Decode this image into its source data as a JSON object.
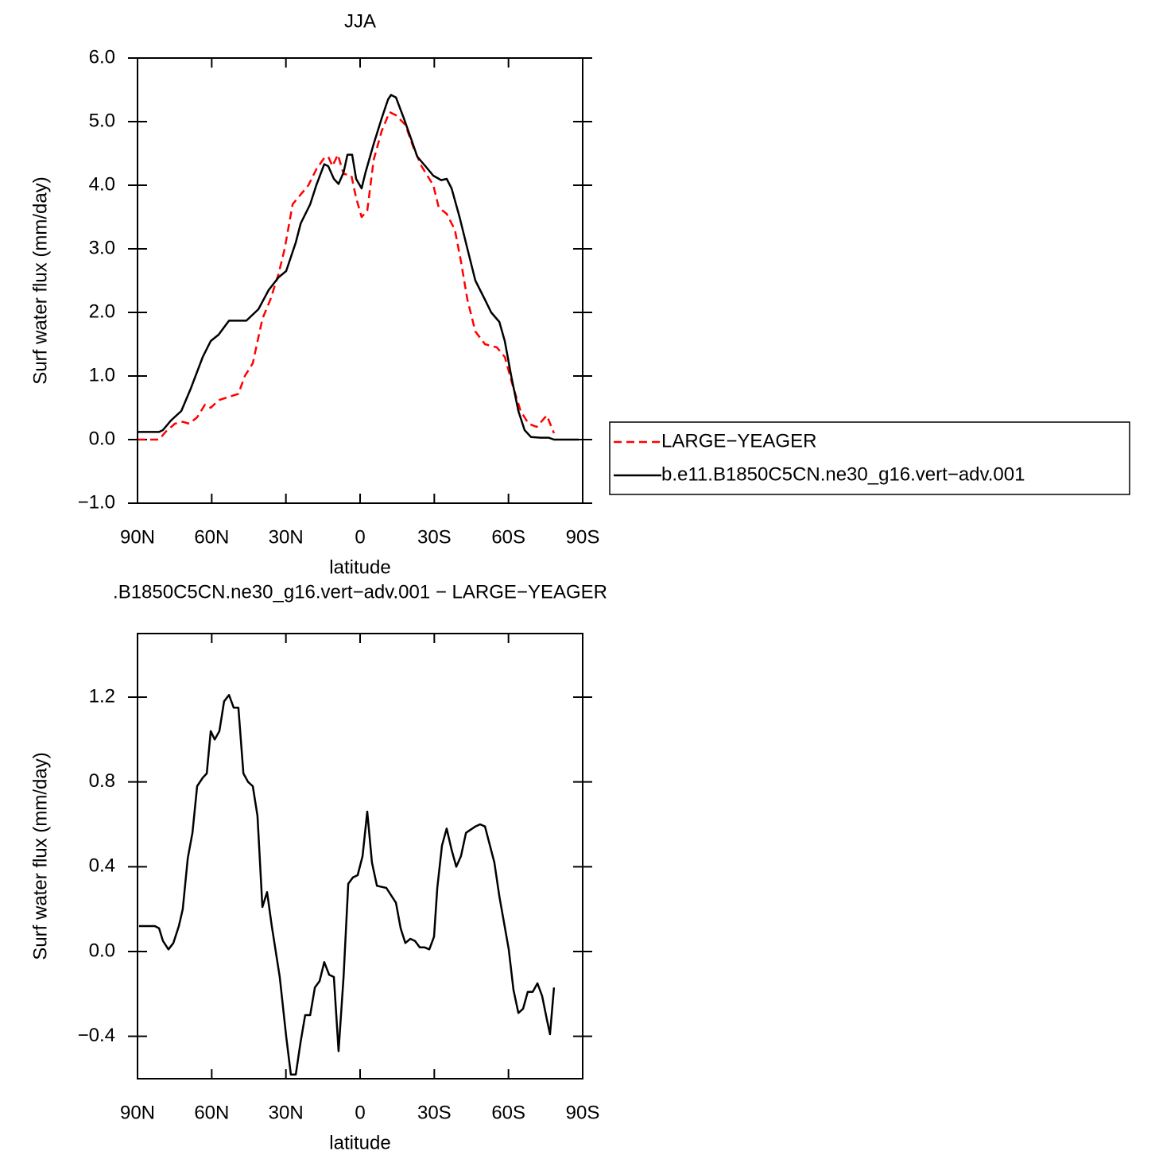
{
  "chart_data": [
    {
      "type": "line",
      "title": "JJA",
      "xlabel": "latitude",
      "ylabel": "Surf water flux (mm/day)",
      "xlim": [
        90,
        -90
      ],
      "xticks": [
        {
          "value": 90,
          "label": "90N"
        },
        {
          "value": 60,
          "label": "60N"
        },
        {
          "value": 30,
          "label": "30N"
        },
        0,
        {
          "value": -30,
          "label": "30S"
        },
        {
          "value": -60,
          "label": "60S"
        },
        {
          "value": -90,
          "label": "90S"
        }
      ],
      "ylim": [
        -1,
        6
      ],
      "yticks": [
        {
          "value": -1,
          "label": "−1.0"
        },
        {
          "value": 0,
          "label": "0.0"
        },
        {
          "value": 1,
          "label": "1.0"
        },
        {
          "value": 2,
          "label": "2.0"
        },
        {
          "value": 3,
          "label": "3.0"
        },
        {
          "value": 4,
          "label": "4.0"
        },
        {
          "value": 5,
          "label": "5.0"
        },
        {
          "value": 6,
          "label": "6.0"
        }
      ],
      "legend": "right",
      "series": [
        {
          "name": "LARGE−YEAGER",
          "color": "#ff0000",
          "dashed": true,
          "x": [
            90,
            81.3,
            78.7,
            74.9,
            71.7,
            69.1,
            65.9,
            62.7,
            60.4,
            57.2,
            52.4,
            49.2,
            46.6,
            43.4,
            39.5,
            36.3,
            33,
            30.5,
            27.3,
            24.1,
            20.9,
            17.7,
            14.5,
            12.9,
            11.2,
            9,
            6.7,
            3.5,
            1.6,
            -0.6,
            -2.9,
            -5.5,
            -8.7,
            -11.9,
            -14.5,
            -18.3,
            -21.5,
            -24.8,
            -29.6,
            -31.8,
            -35,
            -38.3,
            -40.8,
            -43.4,
            -46.6,
            -50.5,
            -55.3,
            -58.5,
            -61.7,
            -64.9,
            -68.1,
            -71.4,
            -75.5,
            -78.4
          ],
          "values": [
            0,
            0,
            0.12,
            0.25,
            0.28,
            0.25,
            0.35,
            0.55,
            0.5,
            0.62,
            0.68,
            0.72,
            1.0,
            1.2,
            1.9,
            2.2,
            2.6,
            3.0,
            3.7,
            3.85,
            4.0,
            4.25,
            4.43,
            4.45,
            4.3,
            4.48,
            4.18,
            4.15,
            3.8,
            3.5,
            3.6,
            4.4,
            4.85,
            5.15,
            5.1,
            4.95,
            4.6,
            4.3,
            4.0,
            3.65,
            3.55,
            3.3,
            2.8,
            2.2,
            1.7,
            1.5,
            1.45,
            1.3,
            0.85,
            0.45,
            0.25,
            0.2,
            0.38,
            0.1
          ]
        },
        {
          "name": "b.e11.B1850C5CN.ne30_g16.vert−adv.001",
          "color": "#000000",
          "dashed": false,
          "x": [
            90,
            81.3,
            79.7,
            76.5,
            72.3,
            68.5,
            63.6,
            60.4,
            57.2,
            53,
            49.2,
            46,
            41.1,
            37,
            33,
            29.9,
            26,
            24,
            20.2,
            17.7,
            14.5,
            12.9,
            10.6,
            8.7,
            6.7,
            5.1,
            3.2,
            1.6,
            -0.6,
            -2.2,
            -5.5,
            -8.7,
            -11.3,
            -12.5,
            -14.5,
            -17.7,
            -20.9,
            -23.1,
            -26.4,
            -29.6,
            -32.8,
            -35,
            -37,
            -40.2,
            -43.4,
            -46.6,
            -50.5,
            -53,
            -56.3,
            -58.5,
            -61.1,
            -64,
            -66.5,
            -69.1,
            -73,
            -76.2,
            -78.4,
            -88.4
          ],
          "values": [
            0.12,
            0.12,
            0.15,
            0.3,
            0.45,
            0.8,
            1.3,
            1.55,
            1.65,
            1.87,
            1.87,
            1.87,
            2.05,
            2.35,
            2.55,
            2.65,
            3.1,
            3.4,
            3.7,
            4.0,
            4.33,
            4.3,
            4.1,
            4.02,
            4.2,
            4.48,
            4.48,
            4.1,
            3.95,
            4.2,
            4.65,
            5.05,
            5.35,
            5.42,
            5.38,
            5.05,
            4.7,
            4.45,
            4.3,
            4.15,
            4.08,
            4.1,
            3.95,
            3.5,
            3.0,
            2.5,
            2.2,
            2.0,
            1.85,
            1.55,
            1.0,
            0.45,
            0.15,
            0.04,
            0.03,
            0.03,
            0,
            0
          ]
        }
      ]
    },
    {
      "type": "line",
      "title": ".B1850C5CN.ne30_g16.vert−adv.001 − LARGE−YEAGER",
      "xlabel": "latitude",
      "ylabel": "Surf water flux (mm/day)",
      "xlim": [
        90,
        -90
      ],
      "xticks": [
        {
          "value": 90,
          "label": "90N"
        },
        {
          "value": 60,
          "label": "60N"
        },
        {
          "value": 30,
          "label": "30N"
        },
        0,
        {
          "value": -30,
          "label": "30S"
        },
        {
          "value": -60,
          "label": "60S"
        },
        {
          "value": -90,
          "label": "90S"
        }
      ],
      "ylim": [
        -0.6,
        1.5
      ],
      "yticks": [
        {
          "value": -0.4,
          "label": "−0.4"
        },
        {
          "value": 0,
          "label": "0.0"
        },
        0.4,
        0.8,
        1.2
      ],
      "series": [
        {
          "color": "#000000",
          "dashed": false,
          "x": [
            89.4,
            83,
            81.3,
            79.7,
            77.5,
            75.5,
            73.3,
            71.7,
            69.7,
            67.8,
            65.9,
            63.6,
            62,
            60.4,
            58.8,
            56.9,
            55,
            53,
            51.1,
            49.2,
            47.2,
            45.3,
            43.4,
            41.5,
            39.5,
            37.6,
            35.7,
            32.5,
            29.9,
            28,
            26,
            24.1,
            22.2,
            20.2,
            18.3,
            16.4,
            14.5,
            12.5,
            10.6,
            8.7,
            6.7,
            4.8,
            2.9,
            1,
            -1,
            -2.9,
            -4.8,
            -6.8,
            -10.6,
            -14.5,
            -16.4,
            -18.3,
            -20.3,
            -22.2,
            -24.1,
            -26,
            -28,
            -29.9,
            -31.2,
            -33.1,
            -35,
            -37,
            -38.9,
            -40.8,
            -42.8,
            -46.6,
            -48.5,
            -50.5,
            -54.3,
            -56.3,
            -60.1,
            -62,
            -64,
            -65.9,
            -67.8,
            -69.8,
            -71.7,
            -73.6,
            -75.5,
            -76.8,
            -78.4
          ],
          "values": [
            0.12,
            0.12,
            0.11,
            0.05,
            0.01,
            0.04,
            0.12,
            0.2,
            0.44,
            0.56,
            0.78,
            0.82,
            0.84,
            1.04,
            1.0,
            1.04,
            1.18,
            1.21,
            1.15,
            1.15,
            0.84,
            0.8,
            0.78,
            0.64,
            0.21,
            0.28,
            0.12,
            -0.12,
            -0.4,
            -0.58,
            -0.58,
            -0.43,
            -0.3,
            -0.3,
            -0.17,
            -0.14,
            -0.05,
            -0.11,
            -0.12,
            -0.47,
            -0.12,
            0.32,
            0.35,
            0.36,
            0.45,
            0.66,
            0.42,
            0.31,
            0.3,
            0.23,
            0.11,
            0.04,
            0.06,
            0.05,
            0.02,
            0.02,
            0.01,
            0.07,
            0.3,
            0.5,
            0.58,
            0.48,
            0.4,
            0.45,
            0.56,
            0.59,
            0.6,
            0.59,
            0.42,
            0.26,
            0.01,
            -0.18,
            -0.29,
            -0.27,
            -0.19,
            -0.19,
            -0.15,
            -0.21,
            -0.32,
            -0.39,
            -0.17
          ]
        }
      ]
    }
  ]
}
